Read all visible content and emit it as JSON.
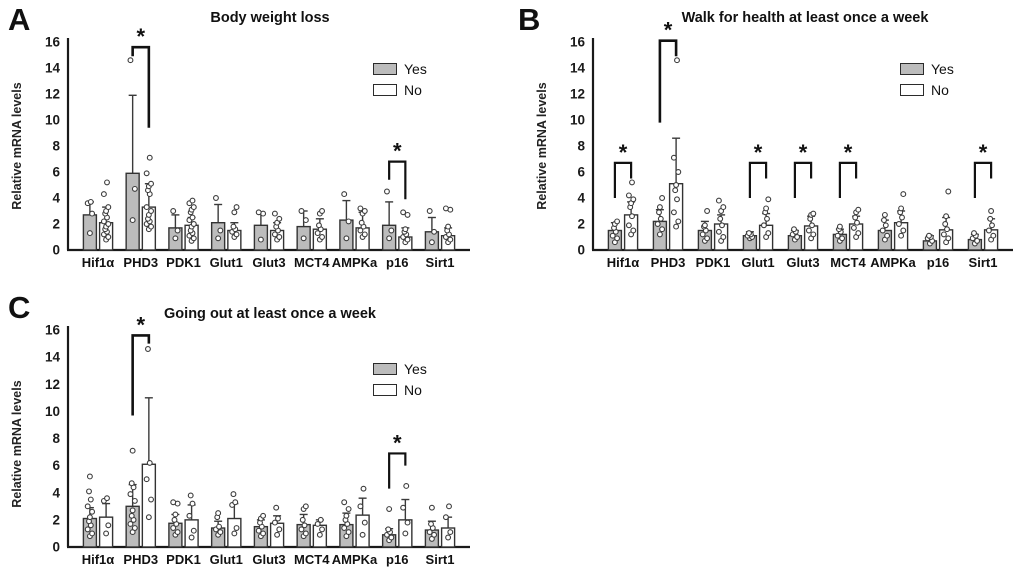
{
  "figure": {
    "ylabel": "Relative mRNA levels",
    "ylim": [
      0,
      16
    ],
    "y_ticks": [
      0,
      2,
      4,
      6,
      8,
      10,
      12,
      14,
      16
    ],
    "categories": [
      "Hif1α",
      "PHD3",
      "PDK1",
      "Glut1",
      "Glut3",
      "MCT4",
      "AMPKa",
      "p16",
      "Sirt1"
    ],
    "legend": {
      "yes_label": "Yes",
      "no_label": "No"
    },
    "colors": {
      "yes_fill": "#bcbcbc",
      "no_fill": "#ffffff",
      "bar_stroke": "#333333",
      "axis": "#1a1a1a",
      "dot_fill": "#ffffff",
      "dot_stroke": "#3d3d3d",
      "bracket": "#111111"
    },
    "sig_marker": "*"
  },
  "chart_data": [
    {
      "panel": "A",
      "type": "bar",
      "title": "Body weight loss",
      "categories": [
        "Hif1α",
        "PHD3",
        "PDK1",
        "Glut1",
        "Glut3",
        "MCT4",
        "AMPKa",
        "p16",
        "Sirt1"
      ],
      "series": [
        {
          "name": "Yes",
          "values": [
            2.7,
            5.9,
            1.7,
            2.1,
            1.9,
            1.8,
            2.3,
            1.9,
            1.4
          ],
          "err_top": [
            3.7,
            11.9,
            2.7,
            3.5,
            2.8,
            3.0,
            3.8,
            3.7,
            2.5
          ],
          "dots": [
            [
              1.3,
              2.8,
              3.6,
              3.7
            ],
            [
              2.3,
              4.7,
              14.6
            ],
            [
              0.9,
              1.5,
              3.0
            ],
            [
              0.9,
              1.5,
              4.0
            ],
            [
              0.8,
              2.8,
              2.9
            ],
            [
              0.9,
              2.3,
              3.0
            ],
            [
              0.9,
              2.2,
              4.3
            ],
            [
              0.9,
              1.5,
              4.5
            ],
            [
              0.6,
              1.4,
              3.0
            ]
          ]
        },
        {
          "name": "No",
          "values": [
            2.1,
            3.3,
            1.9,
            1.5,
            1.5,
            1.6,
            1.7,
            1.0,
            1.1
          ],
          "err_top": [
            3.3,
            5.1,
            2.5,
            2.1,
            2.1,
            2.4,
            2.9,
            1.7,
            1.7
          ],
          "dots": [
            [
              0.8,
              1.0,
              1.2,
              1.4,
              1.6,
              1.8,
              2.0,
              2.2,
              2.5,
              2.8,
              3.0,
              3.3,
              4.3,
              5.2
            ],
            [
              1.6,
              1.8,
              2.0,
              2.2,
              2.4,
              2.7,
              3.0,
              3.3,
              4.3,
              4.6,
              4.9,
              5.1,
              5.9,
              7.1
            ],
            [
              0.7,
              0.9,
              1.1,
              1.3,
              1.5,
              1.8,
              2.0,
              2.3,
              2.5,
              2.9,
              3.1,
              3.3,
              3.6,
              3.8
            ],
            [
              1.0,
              1.2,
              1.4,
              1.6,
              1.8,
              2.9,
              3.3
            ],
            [
              0.8,
              1.0,
              1.2,
              1.5,
              1.8,
              2.1,
              2.4,
              2.8
            ],
            [
              0.8,
              1.0,
              1.3,
              1.6,
              1.9,
              2.8,
              3.0
            ],
            [
              1.0,
              1.2,
              1.5,
              1.8,
              2.1,
              2.8,
              3.0,
              3.2
            ],
            [
              0.6,
              0.8,
              1.0,
              1.2,
              1.4,
              1.6,
              2.7,
              2.9
            ],
            [
              0.6,
              0.8,
              1.0,
              1.2,
              1.5,
              1.8,
              3.1,
              3.2
            ]
          ]
        }
      ],
      "significance": [
        {
          "category": "PHD3",
          "top": 15.6,
          "left_down_to": 14.9,
          "right_down_to": 9.4
        },
        {
          "category": "p16",
          "top": 6.8,
          "left_down_to": 5.4,
          "right_down_to": 3.9
        }
      ]
    },
    {
      "panel": "B",
      "type": "bar",
      "title": "Walk for health at least once a week",
      "categories": [
        "Hif1α",
        "PHD3",
        "PDK1",
        "Glut1",
        "Glut3",
        "MCT4",
        "AMPKa",
        "p16",
        "Sirt1"
      ],
      "series": [
        {
          "name": "Yes",
          "values": [
            1.5,
            2.2,
            1.5,
            1.1,
            1.1,
            1.2,
            1.5,
            0.7,
            0.8
          ],
          "err_top": [
            2.1,
            3.1,
            2.2,
            1.4,
            1.5,
            1.6,
            2.3,
            1.1,
            1.2
          ],
          "dots": [
            [
              0.6,
              0.9,
              1.1,
              1.4,
              1.7,
              2.0,
              2.2
            ],
            [
              1.2,
              1.6,
              2.0,
              2.4,
              2.9,
              3.3,
              4.0
            ],
            [
              0.7,
              0.9,
              1.2,
              1.5,
              1.8,
              1.9,
              3.0
            ],
            [
              0.9,
              1.0,
              1.1,
              1.2,
              1.3
            ],
            [
              0.8,
              1.0,
              1.2,
              1.4,
              1.6
            ],
            [
              0.7,
              0.9,
              1.1,
              1.4,
              1.6,
              1.8
            ],
            [
              0.8,
              1.1,
              1.5,
              1.9,
              2.3,
              2.7
            ],
            [
              0.5,
              0.7,
              0.9,
              1.0,
              1.1
            ],
            [
              0.5,
              0.7,
              0.9,
              1.1,
              1.3
            ]
          ]
        },
        {
          "name": "No",
          "values": [
            2.7,
            5.1,
            2.0,
            1.9,
            1.85,
            2.0,
            2.1,
            1.55,
            1.55
          ],
          "err_top": [
            3.7,
            8.6,
            2.7,
            2.8,
            2.6,
            2.6,
            3.0,
            2.5,
            2.4
          ],
          "dots": [
            [
              1.2,
              1.5,
              1.9,
              2.6,
              3.3,
              3.6,
              3.9,
              4.2,
              5.2
            ],
            [
              1.8,
              2.2,
              2.9,
              3.9,
              4.6,
              5.0,
              6.0,
              7.1,
              14.6
            ],
            [
              0.7,
              1.0,
              1.4,
              1.9,
              2.4,
              3.0,
              3.3,
              3.8
            ],
            [
              1.0,
              1.3,
              1.9,
              2.4,
              2.9,
              3.2,
              3.9
            ],
            [
              0.9,
              1.2,
              1.5,
              1.9,
              2.4,
              2.7,
              2.8
            ],
            [
              1.0,
              1.3,
              1.7,
              2.1,
              2.5,
              2.9,
              3.1
            ],
            [
              1.1,
              1.5,
              2.0,
              2.5,
              2.9,
              3.2,
              4.3
            ],
            [
              0.6,
              0.9,
              1.2,
              1.6,
              2.0,
              2.6,
              4.5
            ],
            [
              0.8,
              1.1,
              1.5,
              1.9,
              2.4,
              3.0
            ]
          ]
        }
      ],
      "significance": [
        {
          "category": "Hif1α",
          "top": 6.7,
          "left_down_to": 4.0,
          "right_down_to": 5.5
        },
        {
          "category": "PHD3",
          "top": 16.1,
          "left_down_to": 9.8,
          "right_down_to": 14.9
        },
        {
          "category": "Glut1",
          "top": 6.7,
          "left_down_to": 4.0,
          "right_down_to": 5.5
        },
        {
          "category": "Glut3",
          "top": 6.7,
          "left_down_to": 4.0,
          "right_down_to": 5.5
        },
        {
          "category": "MCT4",
          "top": 6.7,
          "left_down_to": 4.0,
          "right_down_to": 5.5
        },
        {
          "category": "Sirt1",
          "top": 6.7,
          "left_down_to": 4.0,
          "right_down_to": 5.5
        }
      ]
    },
    {
      "panel": "C",
      "type": "bar",
      "title": "Going out at least once a week",
      "categories": [
        "Hif1α",
        "PHD3",
        "PDK1",
        "Glut1",
        "Glut3",
        "MCT4",
        "AMPKa",
        "p16",
        "Sirt1"
      ],
      "series": [
        {
          "name": "Yes",
          "values": [
            2.1,
            3.0,
            1.75,
            1.4,
            1.5,
            1.65,
            1.65,
            0.9,
            1.25
          ],
          "err_top": [
            2.9,
            4.6,
            2.4,
            1.9,
            2.0,
            2.4,
            2.5,
            1.35,
            1.9
          ],
          "dots": [
            [
              0.8,
              1.0,
              1.3,
              1.6,
              1.9,
              2.2,
              2.6,
              3.0,
              3.5,
              4.1,
              5.2
            ],
            [
              1.1,
              1.4,
              1.7,
              2.0,
              2.3,
              2.7,
              3.4,
              3.9,
              4.4,
              4.7,
              7.1
            ],
            [
              0.9,
              1.1,
              1.4,
              1.7,
              2.0,
              2.4,
              3.2,
              3.3
            ],
            [
              0.9,
              1.1,
              1.3,
              1.5,
              2.2,
              2.5
            ],
            [
              0.8,
              1.0,
              1.2,
              1.5,
              1.8,
              2.1,
              2.3
            ],
            [
              0.8,
              1.0,
              1.3,
              1.6,
              2.0,
              2.8,
              3.0
            ],
            [
              0.8,
              1.1,
              1.4,
              1.7,
              2.0,
              2.3,
              2.8,
              3.3
            ],
            [
              0.5,
              0.7,
              0.9,
              1.1,
              1.3,
              2.8
            ],
            [
              0.6,
              0.9,
              1.1,
              1.4,
              1.7,
              2.9
            ]
          ]
        },
        {
          "name": "No",
          "values": [
            2.2,
            6.1,
            2.0,
            2.1,
            1.75,
            1.6,
            2.35,
            2.0,
            1.4
          ],
          "err_top": [
            3.2,
            11.0,
            3.1,
            3.2,
            2.3,
            2.0,
            3.6,
            3.5,
            2.2
          ],
          "dots": [
            [
              1.0,
              1.6,
              3.4,
              3.6
            ],
            [
              2.2,
              3.5,
              5.0,
              6.2,
              14.6
            ],
            [
              0.7,
              1.2,
              2.3,
              3.2,
              3.8
            ],
            [
              1.0,
              1.4,
              3.1,
              3.3,
              3.9
            ],
            [
              0.9,
              1.3,
              1.8,
              2.1,
              2.9
            ],
            [
              0.9,
              1.3,
              1.7,
              2.0
            ],
            [
              0.9,
              1.8,
              3.0,
              4.3
            ],
            [
              1.0,
              1.8,
              2.9,
              4.5
            ],
            [
              0.7,
              1.1,
              2.2,
              3.0
            ]
          ]
        }
      ],
      "significance": [
        {
          "category": "PHD3",
          "top": 15.6,
          "left_down_to": 9.7,
          "right_down_to": 15.0
        },
        {
          "category": "p16",
          "top": 6.9,
          "left_down_to": 4.3,
          "right_down_to": 6.0
        }
      ]
    }
  ]
}
